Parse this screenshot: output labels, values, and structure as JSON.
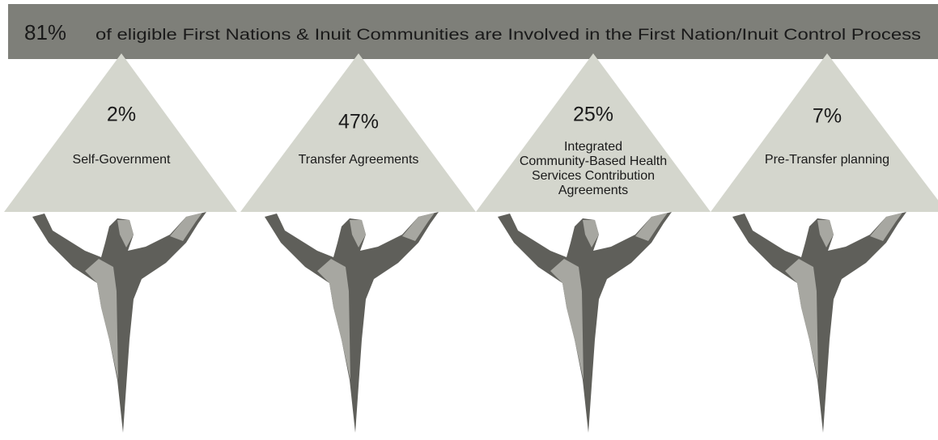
{
  "header": {
    "value": "81%",
    "text": "of eligible First Nations & Inuit Communities are Involved in the First Nation/Inuit Control Process"
  },
  "items": [
    {
      "value": "2%",
      "label_lines": [
        "Self-Government"
      ]
    },
    {
      "value": "47%",
      "label_lines": [
        "Transfer Agreements"
      ]
    },
    {
      "value": "25%",
      "label_lines": [
        "Integrated",
        "Community-Based Health",
        "Services Contribution",
        "Agreements"
      ]
    },
    {
      "value": "7%",
      "label_lines": [
        "Pre-Transfer planning"
      ]
    }
  ]
}
